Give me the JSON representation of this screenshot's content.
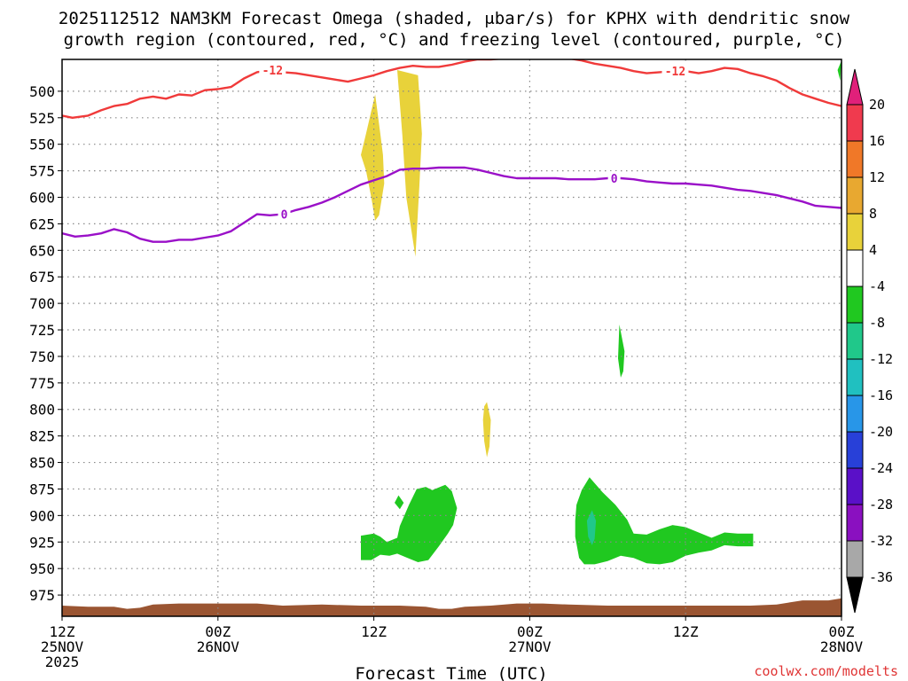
{
  "chart_data": {
    "type": "heatmap",
    "title_lines": [
      "2025112512 NAM3KM Forecast Omega (shaded, μbar/s) for KPHX with dendritic snow",
      "growth region (contoured, red, °C) and freezing level (contoured, purple, °C)"
    ],
    "xlabel": "Forecast Time (UTC)",
    "credit": "coolwx.com/modelts",
    "x_ticks": [
      {
        "h": 0,
        "l1": "12Z",
        "l2": "25NOV",
        "l3": "2025"
      },
      {
        "h": 12,
        "l1": "00Z",
        "l2": "26NOV",
        "l3": ""
      },
      {
        "h": 24,
        "l1": "12Z",
        "l2": "",
        "l3": ""
      },
      {
        "h": 36,
        "l1": "00Z",
        "l2": "27NOV",
        "l3": ""
      },
      {
        "h": 48,
        "l1": "12Z",
        "l2": "",
        "l3": ""
      },
      {
        "h": 60,
        "l1": "00Z",
        "l2": "28NOV",
        "l3": ""
      }
    ],
    "xlim_hours": [
      0,
      60
    ],
    "y_levels_mb": [
      500,
      525,
      550,
      575,
      600,
      625,
      650,
      675,
      700,
      725,
      750,
      775,
      800,
      825,
      850,
      875,
      900,
      925,
      950,
      975
    ],
    "ylim_mb": [
      470,
      995
    ],
    "grid": true,
    "colorbar": {
      "labels": [
        "20",
        "16",
        "12",
        "8",
        "4",
        "-4",
        "-8",
        "-12",
        "-16",
        "-20",
        "-24",
        "-28",
        "-32",
        "-36"
      ],
      "colors": [
        "#f03a4e",
        "#f07828",
        "#e8a830",
        "#e8d23a",
        "#ffffff",
        "#20c820",
        "#20c88a",
        "#20c0c0",
        "#2896e8",
        "#2840d8",
        "#5a10c8",
        "#8a10c0",
        "#a8a8a8"
      ],
      "top_arrow_color": "#e0207a",
      "bottom_arrow_color": "#000000"
    },
    "dgz_contour": {
      "label": "-12",
      "color": "#f03a3a",
      "points": [
        [
          0,
          523
        ],
        [
          0.8,
          525
        ],
        [
          2,
          523
        ],
        [
          3,
          518
        ],
        [
          4,
          514
        ],
        [
          5,
          512
        ],
        [
          6,
          507
        ],
        [
          7,
          505
        ],
        [
          8,
          507
        ],
        [
          9,
          503
        ],
        [
          10,
          504
        ],
        [
          11,
          499
        ],
        [
          12,
          498
        ],
        [
          13,
          496
        ],
        [
          14,
          488
        ],
        [
          15,
          482
        ],
        [
          16,
          480
        ],
        [
          17,
          482
        ],
        [
          18,
          483
        ],
        [
          19,
          485
        ],
        [
          20,
          487
        ],
        [
          21,
          489
        ],
        [
          22,
          491
        ],
        [
          23,
          488
        ],
        [
          24,
          485
        ],
        [
          25,
          481
        ],
        [
          26,
          478
        ],
        [
          27,
          476
        ],
        [
          28,
          477
        ],
        [
          29,
          477
        ],
        [
          30,
          475
        ],
        [
          31,
          472
        ],
        [
          32,
          470
        ],
        [
          33,
          470
        ],
        [
          34,
          469
        ],
        [
          35,
          468
        ],
        [
          36,
          466
        ],
        [
          37,
          467
        ],
        [
          38,
          467
        ],
        [
          39,
          469
        ],
        [
          40,
          471
        ],
        [
          41,
          474
        ],
        [
          42,
          476
        ],
        [
          43,
          478
        ],
        [
          44,
          481
        ],
        [
          45,
          483
        ],
        [
          46,
          482
        ],
        [
          47,
          481
        ],
        [
          48,
          481
        ],
        [
          49,
          483
        ],
        [
          50,
          481
        ],
        [
          51,
          478
        ],
        [
          52,
          479
        ],
        [
          53,
          483
        ],
        [
          54,
          486
        ],
        [
          55,
          490
        ],
        [
          56,
          497
        ],
        [
          57,
          503
        ],
        [
          58,
          507
        ],
        [
          59,
          511
        ],
        [
          60,
          514
        ]
      ],
      "label_hours": [
        16.2,
        47.2
      ]
    },
    "freezing_contour": {
      "label": "0",
      "color": "#9a10c8",
      "points": [
        [
          0,
          634
        ],
        [
          1,
          637
        ],
        [
          2,
          636
        ],
        [
          3,
          634
        ],
        [
          4,
          630
        ],
        [
          5,
          633
        ],
        [
          6,
          639
        ],
        [
          7,
          642
        ],
        [
          8,
          642
        ],
        [
          9,
          640
        ],
        [
          10,
          640
        ],
        [
          11,
          638
        ],
        [
          12,
          636
        ],
        [
          13,
          632
        ],
        [
          14,
          624
        ],
        [
          15,
          616
        ],
        [
          16,
          617
        ],
        [
          17,
          616
        ],
        [
          18,
          612
        ],
        [
          19,
          609
        ],
        [
          20,
          605
        ],
        [
          21,
          600
        ],
        [
          22,
          594
        ],
        [
          23,
          588
        ],
        [
          24,
          584
        ],
        [
          25,
          580
        ],
        [
          26,
          574
        ],
        [
          27,
          573
        ],
        [
          28,
          573
        ],
        [
          29,
          572
        ],
        [
          30,
          572
        ],
        [
          31,
          572
        ],
        [
          32,
          574
        ],
        [
          33,
          577
        ],
        [
          34,
          580
        ],
        [
          35,
          582
        ],
        [
          36,
          582
        ],
        [
          37,
          582
        ],
        [
          38,
          582
        ],
        [
          39,
          583
        ],
        [
          40,
          583
        ],
        [
          41,
          583
        ],
        [
          42,
          582
        ],
        [
          43,
          582
        ],
        [
          44,
          583
        ],
        [
          45,
          585
        ],
        [
          46,
          586
        ],
        [
          47,
          587
        ],
        [
          48,
          587
        ],
        [
          49,
          588
        ],
        [
          50,
          589
        ],
        [
          51,
          591
        ],
        [
          52,
          593
        ],
        [
          53,
          594
        ],
        [
          54,
          596
        ],
        [
          55,
          598
        ],
        [
          56,
          601
        ],
        [
          57,
          604
        ],
        [
          58,
          608
        ],
        [
          59,
          609
        ],
        [
          60,
          610
        ]
      ],
      "label_hours": [
        17.1,
        42.5
      ]
    },
    "shaded_regions": [
      {
        "value_range": [
          4,
          8
        ],
        "color": "#e8d23a",
        "points": [
          [
            25.8,
            480
          ],
          [
            26.2,
            542
          ],
          [
            26.5,
            600
          ],
          [
            26.9,
            632
          ],
          [
            27.2,
            656
          ],
          [
            27.5,
            590
          ],
          [
            27.7,
            540
          ],
          [
            27.4,
            485
          ]
        ]
      },
      {
        "value_range": [
          4,
          8
        ],
        "color": "#e8d23a",
        "points": [
          [
            24.1,
            503
          ],
          [
            24.5,
            540
          ],
          [
            24.7,
            560
          ],
          [
            24.8,
            587
          ],
          [
            24.4,
            617
          ],
          [
            24.1,
            622
          ],
          [
            23.8,
            600
          ],
          [
            23.4,
            575
          ],
          [
            23.0,
            560
          ],
          [
            23.4,
            540
          ]
        ]
      },
      {
        "value_range": [
          4,
          8
        ],
        "color": "#e8d23a",
        "points": [
          [
            32.7,
            793
          ],
          [
            33.0,
            810
          ],
          [
            32.9,
            835
          ],
          [
            32.7,
            845
          ],
          [
            32.5,
            830
          ],
          [
            32.4,
            810
          ],
          [
            32.5,
            797
          ]
        ]
      },
      {
        "value_range": [
          -8,
          -4
        ],
        "color": "#20c820",
        "points": [
          [
            42.9,
            720
          ],
          [
            43.3,
            745
          ],
          [
            43.2,
            764
          ],
          [
            43.0,
            770
          ],
          [
            42.8,
            752
          ]
        ]
      },
      {
        "value_range": [
          -8,
          -4
        ],
        "color": "#20c820",
        "points": [
          [
            60,
            471
          ],
          [
            59.9,
            490
          ],
          [
            59.7,
            480
          ]
        ]
      },
      {
        "value_range": [
          -8,
          -4
        ],
        "color": "#20c820",
        "points": [
          [
            23.0,
            919
          ],
          [
            24.0,
            917
          ],
          [
            24.5,
            920
          ],
          [
            25.0,
            925
          ],
          [
            25.8,
            921
          ],
          [
            26.0,
            910
          ],
          [
            26.7,
            890
          ],
          [
            27.3,
            875
          ],
          [
            28.0,
            873
          ],
          [
            28.5,
            876
          ],
          [
            29.1,
            873
          ],
          [
            29.5,
            871
          ],
          [
            30.0,
            877
          ],
          [
            30.4,
            893
          ],
          [
            30.1,
            909
          ],
          [
            29.7,
            917
          ],
          [
            29.0,
            929
          ],
          [
            28.2,
            942
          ],
          [
            27.4,
            944
          ],
          [
            26.6,
            940
          ],
          [
            25.8,
            936
          ],
          [
            25.2,
            938
          ],
          [
            24.5,
            937
          ],
          [
            23.8,
            942
          ],
          [
            23.0,
            942
          ]
        ]
      },
      {
        "value_range": [
          -8,
          -4
        ],
        "color": "#20c820",
        "points": [
          [
            25.9,
            881
          ],
          [
            26.3,
            888
          ],
          [
            26.0,
            894
          ],
          [
            25.6,
            888
          ]
        ]
      },
      {
        "value_range": [
          -8,
          -4
        ],
        "color": "#20c820",
        "points": [
          [
            39.6,
            890
          ],
          [
            40.0,
            876
          ],
          [
            40.6,
            864
          ],
          [
            41.6,
            878
          ],
          [
            42.6,
            890
          ],
          [
            43.5,
            904
          ],
          [
            44.0,
            917
          ],
          [
            45.0,
            918
          ],
          [
            46.0,
            913
          ],
          [
            47.0,
            909
          ],
          [
            48.0,
            911
          ],
          [
            49.0,
            916
          ],
          [
            50.0,
            921
          ],
          [
            51.0,
            916
          ],
          [
            52.0,
            917
          ],
          [
            53.2,
            917
          ],
          [
            53.2,
            929
          ],
          [
            52.0,
            929
          ],
          [
            51.0,
            928
          ],
          [
            50.0,
            933
          ],
          [
            49.0,
            935
          ],
          [
            48.0,
            938
          ],
          [
            47.0,
            944
          ],
          [
            46.0,
            946
          ],
          [
            45.0,
            945
          ],
          [
            44.0,
            940
          ],
          [
            43.0,
            938
          ],
          [
            42.0,
            943
          ],
          [
            41.0,
            946
          ],
          [
            40.2,
            946
          ],
          [
            39.8,
            940
          ],
          [
            39.5,
            920
          ],
          [
            39.5,
            905
          ]
        ]
      },
      {
        "value_range": [
          -12,
          -8
        ],
        "color": "#20c88a",
        "points": [
          [
            40.8,
            895
          ],
          [
            41.1,
            905
          ],
          [
            41.0,
            922
          ],
          [
            40.8,
            928
          ],
          [
            40.5,
            920
          ],
          [
            40.4,
            905
          ]
        ]
      }
    ],
    "terrain": {
      "color": "#9a5532",
      "surface_points": [
        [
          0,
          985
        ],
        [
          2,
          986
        ],
        [
          4,
          986
        ],
        [
          5,
          988
        ],
        [
          6,
          987
        ],
        [
          7,
          984
        ],
        [
          9,
          983
        ],
        [
          12,
          983
        ],
        [
          15,
          983
        ],
        [
          17,
          985
        ],
        [
          20,
          984
        ],
        [
          23,
          985
        ],
        [
          26,
          985
        ],
        [
          28,
          986
        ],
        [
          29,
          988
        ],
        [
          30,
          988
        ],
        [
          31,
          986
        ],
        [
          33,
          985
        ],
        [
          35,
          983
        ],
        [
          37,
          983
        ],
        [
          39,
          984
        ],
        [
          42,
          985
        ],
        [
          45,
          985
        ],
        [
          48,
          985
        ],
        [
          51,
          985
        ],
        [
          53,
          985
        ],
        [
          55,
          984
        ],
        [
          56,
          982
        ],
        [
          57,
          980
        ],
        [
          59,
          980
        ],
        [
          60,
          978
        ]
      ]
    }
  }
}
